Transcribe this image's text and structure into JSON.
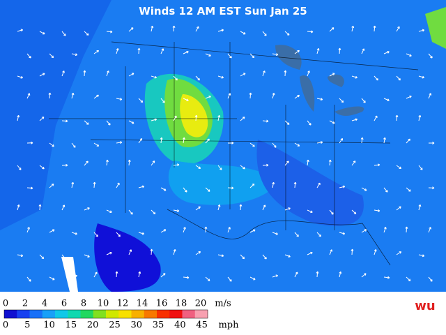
{
  "title": "Winds 12 AM EST Sun Jan 25",
  "legend": {
    "ms_ticks": [
      0,
      2,
      4,
      6,
      8,
      10,
      12,
      14,
      16,
      18,
      20
    ],
    "ms_unit": "m/s",
    "mph_ticks": [
      0,
      5,
      10,
      15,
      20,
      25,
      30,
      35,
      40,
      45
    ],
    "mph_unit": "mph",
    "colors": [
      "#1010d0",
      "#1840f0",
      "#1870f8",
      "#18a0f8",
      "#10c8e8",
      "#10d8b0",
      "#20d860",
      "#80e020",
      "#d0e800",
      "#f8e000",
      "#f8b000",
      "#f87800",
      "#f83000",
      "#f01010",
      "#f06080",
      "#f8a0b0"
    ]
  },
  "logo": "wu"
}
